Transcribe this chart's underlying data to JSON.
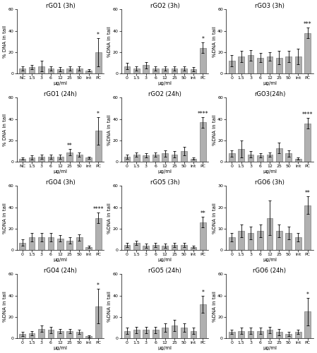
{
  "subplots": [
    {
      "title": "rGO1 (3h)",
      "ylabel": "% DNA in tail",
      "ylim": [
        0,
        60
      ],
      "yticks": [
        0,
        20,
        40,
        60
      ],
      "categories": [
        "NC",
        "1.5",
        "3",
        "6",
        "12",
        "25",
        "50",
        "Int",
        "PC"
      ],
      "means": [
        5,
        6,
        7,
        5,
        4,
        5,
        5,
        3,
        20
      ],
      "errors": [
        2,
        2,
        5,
        2,
        2,
        2,
        2,
        1,
        13
      ],
      "stars": [
        "",
        "",
        "",
        "",
        "",
        "",
        "",
        "",
        "*"
      ],
      "star_heights": [
        0,
        0,
        0,
        0,
        0,
        0,
        0,
        0,
        33
      ]
    },
    {
      "title": "rGO2 (3h)",
      "ylabel": "%DNA in tail",
      "ylim": [
        0,
        60
      ],
      "yticks": [
        0,
        20,
        40,
        60
      ],
      "categories": [
        "0",
        "1.5",
        "3",
        "6",
        "12",
        "25",
        "50",
        "Int",
        "PC"
      ],
      "means": [
        7,
        5,
        8,
        5,
        5,
        5,
        5,
        4,
        24
      ],
      "errors": [
        3,
        2,
        3,
        2,
        2,
        2,
        2,
        2,
        5
      ],
      "stars": [
        "",
        "",
        "",
        "",
        "",
        "",
        "",
        "",
        "*"
      ],
      "star_heights": [
        0,
        0,
        0,
        0,
        0,
        0,
        0,
        0,
        29
      ]
    },
    {
      "title": "rGO3 (3h)",
      "ylabel": "%DNA in tail",
      "ylim": [
        0,
        60
      ],
      "yticks": [
        0,
        20,
        40,
        60
      ],
      "categories": [
        "0",
        "1.5",
        "3",
        "6",
        "12",
        "25",
        "50",
        "Int",
        "PC"
      ],
      "means": [
        12,
        16,
        17,
        15,
        16,
        15,
        16,
        16,
        38
      ],
      "errors": [
        5,
        5,
        5,
        4,
        4,
        6,
        5,
        7,
        5
      ],
      "stars": [
        "",
        "",
        "",
        "",
        "",
        "",
        "",
        "",
        "***"
      ],
      "star_heights": [
        0,
        0,
        0,
        0,
        0,
        0,
        0,
        0,
        43
      ]
    },
    {
      "title": "rGO1 (24h)",
      "ylabel": "% DNA in tail",
      "ylim": [
        0,
        60
      ],
      "yticks": [
        0,
        20,
        40,
        60
      ],
      "categories": [
        "NC",
        "1.5",
        "3",
        "6",
        "12",
        "25",
        "50",
        "Int",
        "PC"
      ],
      "means": [
        3,
        4,
        5,
        5,
        5,
        9,
        7,
        4,
        29
      ],
      "errors": [
        1,
        2,
        2,
        2,
        2,
        3,
        2,
        1,
        13
      ],
      "stars": [
        "",
        "",
        "",
        "",
        "",
        "**",
        "",
        "",
        "*"
      ],
      "star_heights": [
        0,
        0,
        0,
        0,
        0,
        12,
        0,
        0,
        42
      ]
    },
    {
      "title": "rGO2 (24h)",
      "ylabel": "%DNA in tail",
      "ylim": [
        0,
        60
      ],
      "yticks": [
        0,
        20,
        40,
        60
      ],
      "categories": [
        "0",
        "1.5",
        "3",
        "6",
        "12",
        "25",
        "50",
        "Int",
        "PC"
      ],
      "means": [
        5,
        7,
        6,
        7,
        8,
        7,
        10,
        3,
        37
      ],
      "errors": [
        2,
        2,
        2,
        2,
        3,
        3,
        4,
        1,
        5
      ],
      "stars": [
        "",
        "",
        "",
        "",
        "",
        "",
        "",
        "",
        "****"
      ],
      "star_heights": [
        0,
        0,
        0,
        0,
        0,
        0,
        0,
        0,
        42
      ]
    },
    {
      "title": "rGO3(24h)",
      "ylabel": "%DNA in tail",
      "ylim": [
        0,
        60
      ],
      "yticks": [
        0,
        20,
        40,
        60
      ],
      "categories": [
        "0",
        "1.5",
        "3",
        "6",
        "12",
        "25",
        "50",
        "Int",
        "PC"
      ],
      "means": [
        8,
        12,
        7,
        6,
        7,
        13,
        8,
        3,
        36
      ],
      "errors": [
        3,
        8,
        3,
        2,
        2,
        5,
        3,
        1,
        5
      ],
      "stars": [
        "",
        "",
        "",
        "",
        "",
        "",
        "",
        "",
        "****"
      ],
      "star_heights": [
        0,
        0,
        0,
        0,
        0,
        0,
        0,
        0,
        41
      ]
    },
    {
      "title": "rGO4 (3h)",
      "ylabel": "%DNA in tail",
      "ylim": [
        0,
        60
      ],
      "yticks": [
        0,
        20,
        40,
        60
      ],
      "categories": [
        "0",
        "1.5",
        "3",
        "6",
        "12",
        "25",
        "50",
        "Int",
        "PC"
      ],
      "means": [
        7,
        12,
        12,
        12,
        11,
        9,
        12,
        3,
        30
      ],
      "errors": [
        3,
        4,
        4,
        4,
        3,
        3,
        3,
        1,
        5
      ],
      "stars": [
        "",
        "",
        "",
        "",
        "",
        "",
        "",
        "",
        "****"
      ],
      "star_heights": [
        0,
        0,
        0,
        0,
        0,
        0,
        0,
        0,
        35
      ]
    },
    {
      "title": "rGO5 (3h)",
      "ylabel": "%DNA in tail",
      "ylim": [
        0,
        60
      ],
      "yticks": [
        0,
        20,
        40,
        60
      ],
      "categories": [
        "0",
        "1.5",
        "3",
        "6",
        "12",
        "25",
        "50",
        "Int",
        "PC"
      ],
      "means": [
        5,
        7,
        4,
        5,
        4,
        5,
        5,
        3,
        26
      ],
      "errors": [
        2,
        2,
        2,
        2,
        2,
        2,
        2,
        1,
        5
      ],
      "stars": [
        "",
        "",
        "",
        "",
        "",
        "",
        "",
        "",
        "**"
      ],
      "star_heights": [
        0,
        0,
        0,
        0,
        0,
        0,
        0,
        0,
        31
      ]
    },
    {
      "title": "rGO6 (3h)",
      "ylabel": "%DNA in tail",
      "ylim": [
        0,
        30
      ],
      "yticks": [
        0,
        10,
        20,
        30
      ],
      "categories": [
        "0",
        "1.5",
        "3",
        "6",
        "12",
        "25",
        "50",
        "Int",
        "PC"
      ],
      "means": [
        6,
        9,
        8,
        9,
        15,
        9,
        8,
        6,
        21
      ],
      "errors": [
        2,
        3,
        3,
        3,
        8,
        3,
        3,
        2,
        4
      ],
      "stars": [
        "",
        "",
        "",
        "",
        "",
        "",
        "",
        "",
        "**"
      ],
      "star_heights": [
        0,
        0,
        0,
        0,
        0,
        0,
        0,
        0,
        25
      ]
    },
    {
      "title": "rGO4 (24h)",
      "ylabel": "%DNA in tail",
      "ylim": [
        0,
        60
      ],
      "yticks": [
        0,
        20,
        40,
        60
      ],
      "categories": [
        "0",
        "1.5",
        "3",
        "6",
        "12",
        "25",
        "50",
        "Int",
        "PC"
      ],
      "means": [
        4,
        5,
        9,
        8,
        7,
        7,
        6,
        2,
        30
      ],
      "errors": [
        2,
        2,
        3,
        3,
        2,
        2,
        2,
        1,
        16
      ],
      "stars": [
        "",
        "",
        "",
        "",
        "",
        "",
        "",
        "",
        "*"
      ],
      "star_heights": [
        0,
        0,
        0,
        0,
        0,
        0,
        0,
        0,
        46
      ]
    },
    {
      "title": "rGO5 (24h)",
      "ylabel": "%DNA in tail",
      "ylim": [
        0,
        60
      ],
      "yticks": [
        0,
        20,
        40,
        60
      ],
      "categories": [
        "0",
        "1.5",
        "3",
        "6",
        "12",
        "25",
        "50",
        "Int",
        "PC"
      ],
      "means": [
        7,
        8,
        8,
        8,
        10,
        12,
        10,
        7,
        32
      ],
      "errors": [
        3,
        3,
        3,
        3,
        4,
        5,
        4,
        3,
        8
      ],
      "stars": [
        "",
        "",
        "",
        "",
        "",
        "",
        "",
        "",
        "*"
      ],
      "star_heights": [
        0,
        0,
        0,
        0,
        0,
        0,
        0,
        0,
        40
      ]
    },
    {
      "title": "rGO6 (24h)",
      "ylabel": "%DNA in tail",
      "ylim": [
        0,
        60
      ],
      "yticks": [
        0,
        20,
        40,
        60
      ],
      "categories": [
        "0",
        "1.5",
        "3",
        "6",
        "12",
        "25",
        "50",
        "Int",
        "PC"
      ],
      "means": [
        6,
        7,
        7,
        7,
        8,
        6,
        4,
        6,
        25
      ],
      "errors": [
        2,
        3,
        3,
        3,
        3,
        3,
        2,
        2,
        13
      ],
      "stars": [
        "",
        "",
        "",
        "",
        "",
        "",
        "",
        "",
        "*"
      ],
      "star_heights": [
        0,
        0,
        0,
        0,
        0,
        0,
        0,
        0,
        38
      ]
    }
  ],
  "bar_color": "#b0b0b0",
  "bar_edgecolor": "#666666",
  "xlabel": "μg/ml",
  "background_color": "#ffffff",
  "title_fontsize": 6.0,
  "axis_fontsize": 5.0,
  "tick_fontsize": 4.5,
  "star_fontsize": 5.5
}
